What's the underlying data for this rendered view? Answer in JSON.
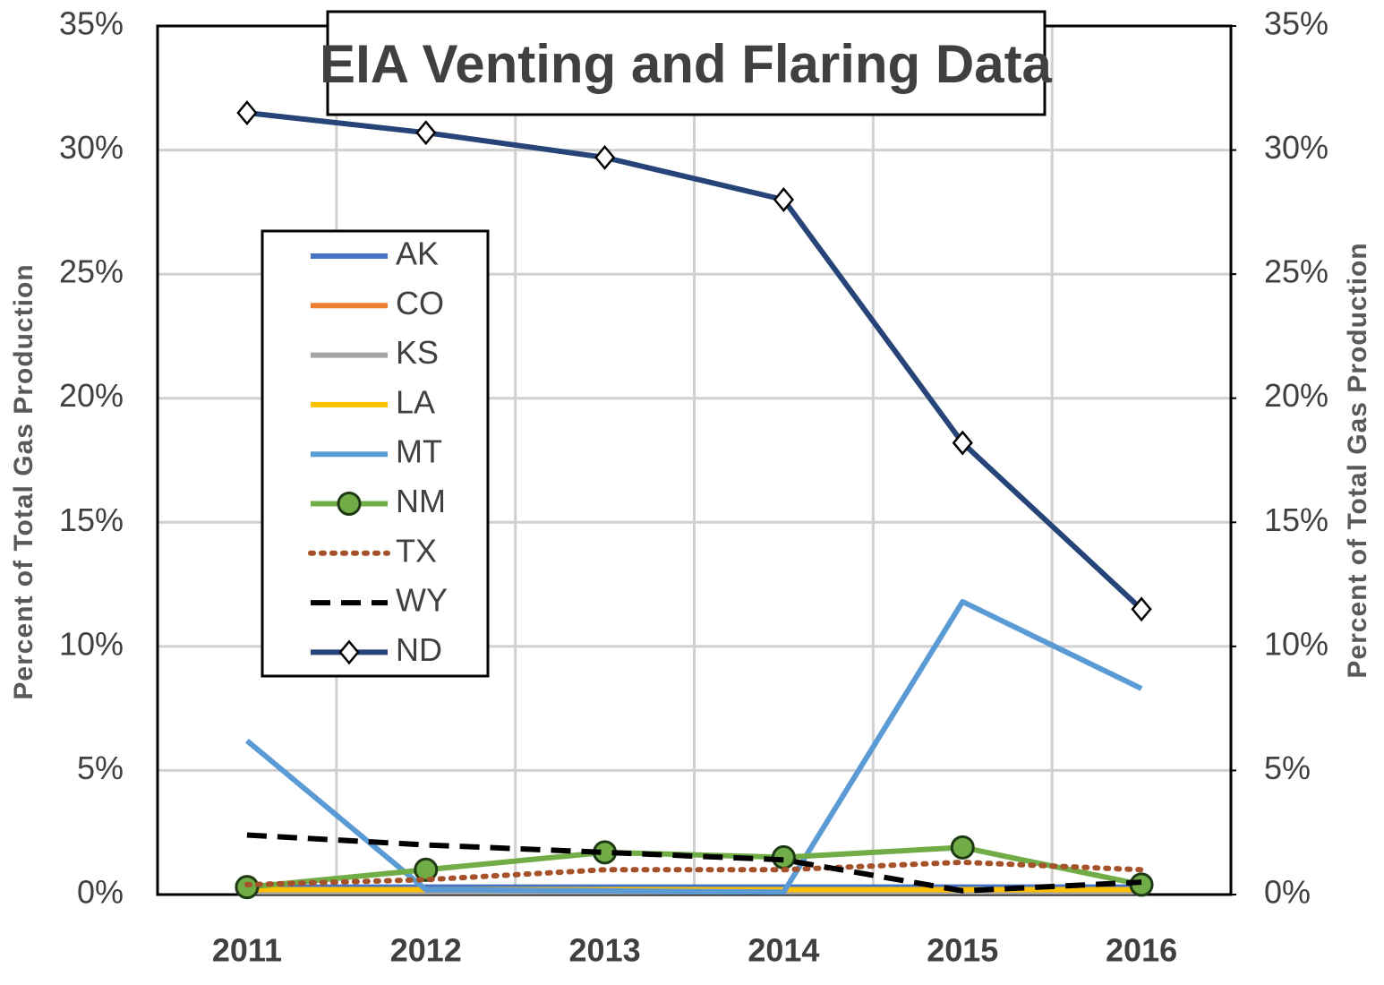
{
  "chart_data": {
    "type": "line",
    "title": "EIA Venting and Flaring Data",
    "y_label": "Percent of Total Gas Production",
    "y2_label": "Percent of Total Gas Production",
    "categories": [
      "2011",
      "2012",
      "2013",
      "2014",
      "2015",
      "2016"
    ],
    "ylim": [
      0,
      35
    ],
    "yticks": [
      {
        "value": 0,
        "label": "0%"
      },
      {
        "value": 5,
        "label": "5%"
      },
      {
        "value": 10,
        "label": "10%"
      },
      {
        "value": 15,
        "label": "15%"
      },
      {
        "value": 20,
        "label": "20%"
      },
      {
        "value": 25,
        "label": "25%"
      },
      {
        "value": 30,
        "label": "30%"
      },
      {
        "value": 35,
        "label": "35%"
      }
    ],
    "y2lim": [
      0,
      35
    ],
    "y2ticks": [
      {
        "value": 0,
        "label": "0%"
      },
      {
        "value": 5,
        "label": "5%"
      },
      {
        "value": 10,
        "label": "10%"
      },
      {
        "value": 15,
        "label": "15%"
      },
      {
        "value": 20,
        "label": "20%"
      },
      {
        "value": 25,
        "label": "25%"
      },
      {
        "value": 30,
        "label": "30%"
      },
      {
        "value": 35,
        "label": "35%"
      }
    ],
    "grid": true,
    "legend": "upper left",
    "series": [
      {
        "name": "AK",
        "color": "#4472c4",
        "values": [
          0.3,
          0.3,
          0.3,
          0.3,
          0.3,
          0.3
        ]
      },
      {
        "name": "CO",
        "color": "#ed7d31",
        "values": [
          0.2,
          0.2,
          0.2,
          0.2,
          0.2,
          0.2
        ]
      },
      {
        "name": "KS",
        "color": "#a5a5a5",
        "values": [
          0.1,
          0.1,
          0.1,
          0.1,
          0.1,
          0.1
        ]
      },
      {
        "name": "LA",
        "color": "#ffc000",
        "values": [
          0.2,
          0.2,
          0.2,
          0.2,
          0.2,
          0.2
        ]
      },
      {
        "name": "MT",
        "color": "#5b9bd5",
        "values": [
          6.2,
          0.2,
          0.15,
          0.1,
          11.8,
          8.3
        ]
      },
      {
        "name": "NM",
        "color": "#70ad47",
        "marker": "circle",
        "values": [
          0.3,
          1.0,
          1.7,
          1.5,
          1.9,
          0.4
        ]
      },
      {
        "name": "TX",
        "color": "#a5512a",
        "dash": "dotted",
        "values": [
          0.4,
          0.6,
          1.0,
          1.0,
          1.3,
          1.0
        ]
      },
      {
        "name": "WY",
        "color": "#000000",
        "dash": "dashed",
        "values": [
          2.4,
          2.0,
          1.7,
          1.4,
          0.15,
          0.5
        ]
      },
      {
        "name": "ND",
        "color": "#264478",
        "marker": "diamond",
        "values": [
          31.5,
          30.7,
          29.7,
          28.0,
          18.2,
          11.5
        ]
      }
    ]
  }
}
